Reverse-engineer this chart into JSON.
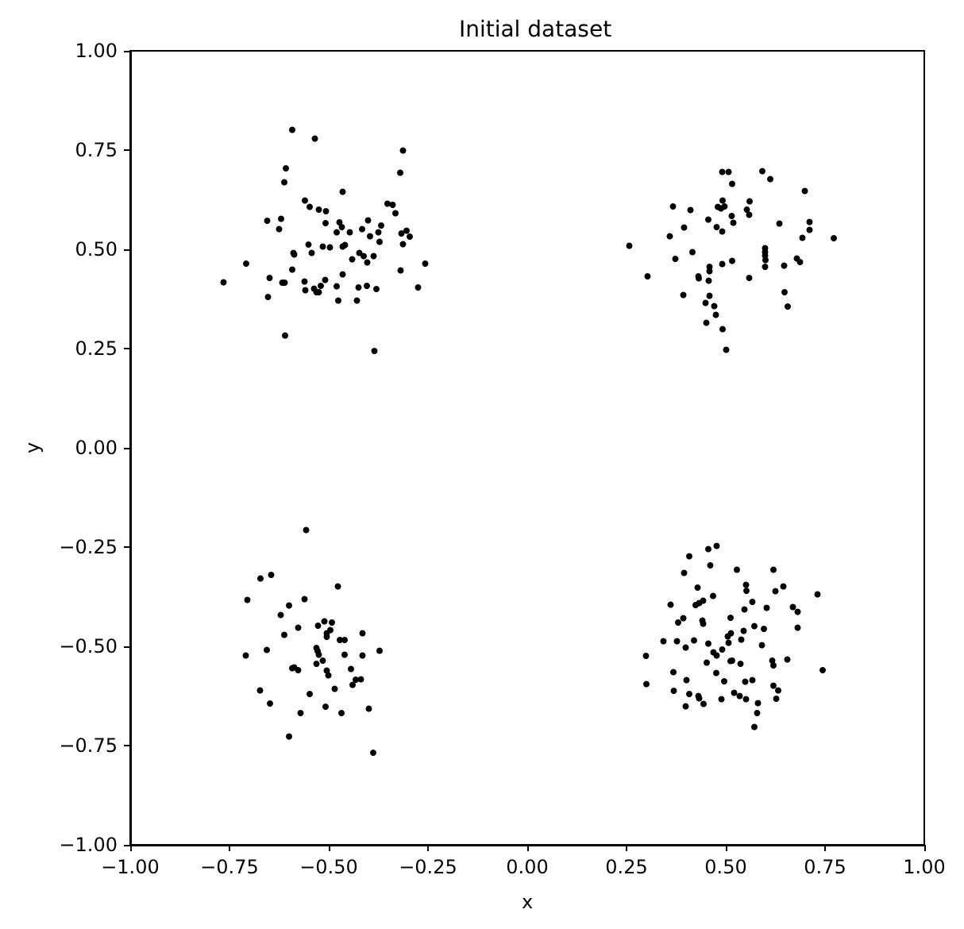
{
  "chart_data": {
    "type": "scatter",
    "title": "Initial dataset",
    "xlabel": "x",
    "ylabel": "y",
    "marker": "circle",
    "grid": false,
    "xlim": [
      -1,
      1
    ],
    "ylim": [
      -1,
      1
    ],
    "xticks": [
      {
        "value": -1,
        "label": "−1.00"
      },
      {
        "value": -0.75,
        "label": "−0.75"
      },
      {
        "value": -0.5,
        "label": "−0.50"
      },
      {
        "value": -0.25,
        "label": "−0.25"
      },
      {
        "value": 0,
        "label": "0.00"
      },
      {
        "value": 0.25,
        "label": "0.25"
      },
      {
        "value": 0.5,
        "label": "0.50"
      },
      {
        "value": 0.75,
        "label": "0.75"
      },
      {
        "value": 1,
        "label": "1.00"
      }
    ],
    "yticks": [
      {
        "value": -1,
        "label": "−1.00"
      },
      {
        "value": -0.75,
        "label": "−0.75"
      },
      {
        "value": -0.5,
        "label": "−0.50"
      },
      {
        "value": -0.25,
        "label": "−0.25"
      },
      {
        "value": 0,
        "label": "0.00"
      },
      {
        "value": 0.25,
        "label": "0.25"
      },
      {
        "value": 0.5,
        "label": "0.50"
      },
      {
        "value": 0.75,
        "label": "0.75"
      },
      {
        "value": 1,
        "label": "1.00"
      }
    ],
    "series": [
      {
        "color": "#000000",
        "x": [
          -0.592,
          -0.535,
          -0.313,
          -0.608,
          -0.32,
          -0.612,
          -0.465,
          -0.56,
          -0.548,
          -0.525,
          -0.507,
          -0.352,
          -0.339,
          -0.332,
          -0.655,
          -0.62,
          -0.625,
          -0.508,
          -0.473,
          -0.467,
          -0.48,
          -0.447,
          -0.401,
          -0.416,
          -0.368,
          -0.375,
          -0.396,
          -0.372,
          -0.317,
          -0.304,
          -0.296,
          -0.313,
          -0.551,
          -0.515,
          -0.497,
          -0.465,
          -0.459,
          -0.589,
          -0.587,
          -0.543,
          -0.423,
          -0.412,
          -0.387,
          -0.441,
          -0.403,
          -0.708,
          -0.257,
          -0.592,
          -0.319,
          -0.465,
          -0.765,
          -0.649,
          -0.617,
          -0.611,
          -0.561,
          -0.509,
          -0.275,
          -0.653,
          -0.559,
          -0.537,
          -0.531,
          -0.525,
          -0.52,
          -0.48,
          -0.476,
          -0.425,
          -0.404,
          -0.38,
          -0.429,
          -0.61,
          -0.385,
          0.491,
          0.507,
          0.592,
          0.612,
          0.516,
          0.699,
          0.367,
          0.411,
          0.492,
          0.48,
          0.488,
          0.497,
          0.56,
          0.553,
          0.559,
          0.515,
          0.519,
          0.456,
          0.395,
          0.477,
          0.491,
          0.635,
          0.711,
          0.711,
          0.693,
          0.772,
          0.359,
          0.257,
          0.599,
          0.599,
          0.599,
          0.6,
          0.416,
          0.373,
          0.679,
          0.687,
          0.491,
          0.516,
          0.599,
          0.647,
          0.459,
          0.459,
          0.431,
          0.432,
          0.457,
          0.559,
          0.303,
          0.648,
          0.393,
          0.459,
          0.449,
          0.471,
          0.656,
          0.475,
          0.451,
          0.492,
          0.501,
          -0.557,
          -0.672,
          -0.645,
          -0.477,
          -0.705,
          -0.6,
          -0.561,
          -0.621,
          -0.612,
          -0.577,
          -0.527,
          -0.511,
          -0.492,
          -0.496,
          -0.505,
          -0.505,
          -0.472,
          -0.46,
          -0.415,
          -0.709,
          -0.656,
          -0.531,
          -0.528,
          -0.525,
          -0.515,
          -0.531,
          -0.46,
          -0.415,
          -0.372,
          -0.592,
          -0.587,
          -0.577,
          -0.505,
          -0.501,
          -0.444,
          -0.419,
          -0.432,
          -0.44,
          -0.485,
          -0.673,
          -0.548,
          -0.648,
          -0.508,
          -0.571,
          -0.468,
          -0.399,
          -0.6,
          -0.388,
          0.456,
          0.477,
          0.408,
          0.395,
          0.461,
          0.528,
          0.62,
          0.551,
          0.552,
          0.645,
          0.625,
          0.731,
          0.429,
          0.468,
          0.443,
          0.433,
          0.424,
          0.361,
          0.567,
          0.547,
          0.603,
          0.669,
          0.681,
          0.393,
          0.38,
          0.441,
          0.443,
          0.512,
          0.572,
          0.596,
          0.681,
          0.545,
          0.513,
          0.505,
          0.539,
          0.343,
          0.377,
          0.42,
          0.399,
          0.456,
          0.507,
          0.591,
          0.491,
          0.469,
          0.477,
          0.299,
          0.516,
          0.512,
          0.537,
          0.452,
          0.617,
          0.62,
          0.655,
          0.744,
          0.368,
          0.476,
          0.3,
          0.401,
          0.496,
          0.549,
          0.567,
          0.62,
          0.632,
          0.627,
          0.369,
          0.408,
          0.431,
          0.433,
          0.444,
          0.399,
          0.489,
          0.521,
          0.535,
          0.551,
          0.581,
          0.579,
          0.572
        ],
        "values": [
          0.801,
          0.779,
          0.749,
          0.704,
          0.693,
          0.669,
          0.645,
          0.623,
          0.607,
          0.6,
          0.596,
          0.615,
          0.612,
          0.591,
          0.572,
          0.577,
          0.551,
          0.566,
          0.568,
          0.556,
          0.543,
          0.543,
          0.573,
          0.551,
          0.56,
          0.543,
          0.533,
          0.519,
          0.54,
          0.547,
          0.532,
          0.513,
          0.512,
          0.507,
          0.505,
          0.507,
          0.511,
          0.491,
          0.487,
          0.491,
          0.491,
          0.483,
          0.483,
          0.475,
          0.467,
          0.464,
          0.464,
          0.449,
          0.447,
          0.437,
          0.417,
          0.428,
          0.416,
          0.416,
          0.419,
          0.423,
          0.404,
          0.38,
          0.397,
          0.401,
          0.392,
          0.392,
          0.408,
          0.407,
          0.371,
          0.404,
          0.408,
          0.4,
          0.371,
          0.283,
          0.244,
          0.695,
          0.695,
          0.697,
          0.677,
          0.665,
          0.647,
          0.608,
          0.599,
          0.623,
          0.607,
          0.603,
          0.608,
          0.621,
          0.6,
          0.587,
          0.584,
          0.567,
          0.575,
          0.555,
          0.556,
          0.545,
          0.565,
          0.569,
          0.549,
          0.529,
          0.528,
          0.533,
          0.509,
          0.503,
          0.493,
          0.484,
          0.473,
          0.493,
          0.476,
          0.477,
          0.468,
          0.463,
          0.471,
          0.456,
          0.459,
          0.456,
          0.445,
          0.432,
          0.427,
          0.421,
          0.428,
          0.432,
          0.392,
          0.385,
          0.383,
          0.365,
          0.357,
          0.356,
          0.335,
          0.315,
          0.299,
          0.247,
          -0.207,
          -0.329,
          -0.32,
          -0.349,
          -0.383,
          -0.397,
          -0.381,
          -0.421,
          -0.471,
          -0.453,
          -0.448,
          -0.437,
          -0.44,
          -0.459,
          -0.467,
          -0.476,
          -0.484,
          -0.484,
          -0.467,
          -0.523,
          -0.509,
          -0.504,
          -0.512,
          -0.521,
          -0.536,
          -0.544,
          -0.521,
          -0.523,
          -0.511,
          -0.555,
          -0.553,
          -0.56,
          -0.561,
          -0.573,
          -0.557,
          -0.583,
          -0.584,
          -0.597,
          -0.607,
          -0.611,
          -0.62,
          -0.644,
          -0.652,
          -0.668,
          -0.668,
          -0.657,
          -0.727,
          -0.768,
          -0.255,
          -0.247,
          -0.273,
          -0.315,
          -0.296,
          -0.307,
          -0.307,
          -0.345,
          -0.36,
          -0.349,
          -0.361,
          -0.369,
          -0.352,
          -0.373,
          -0.385,
          -0.391,
          -0.396,
          -0.395,
          -0.388,
          -0.407,
          -0.403,
          -0.401,
          -0.413,
          -0.429,
          -0.44,
          -0.435,
          -0.443,
          -0.428,
          -0.449,
          -0.456,
          -0.453,
          -0.461,
          -0.467,
          -0.475,
          -0.483,
          -0.487,
          -0.487,
          -0.485,
          -0.503,
          -0.493,
          -0.491,
          -0.497,
          -0.508,
          -0.515,
          -0.523,
          -0.524,
          -0.536,
          -0.537,
          -0.544,
          -0.541,
          -0.536,
          -0.548,
          -0.533,
          -0.56,
          -0.565,
          -0.567,
          -0.595,
          -0.585,
          -0.588,
          -0.589,
          -0.585,
          -0.599,
          -0.611,
          -0.632,
          -0.612,
          -0.62,
          -0.625,
          -0.631,
          -0.645,
          -0.651,
          -0.633,
          -0.617,
          -0.625,
          -0.633,
          -0.643,
          -0.668,
          -0.703
        ]
      }
    ]
  }
}
